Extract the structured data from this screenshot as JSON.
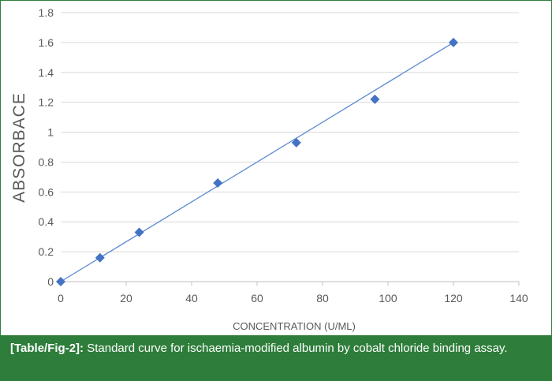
{
  "figure": {
    "label": "[Table/Fig-2]:",
    "caption": "Standard curve for ischaemia-modified albumin by cobalt chloride binding assay."
  },
  "chart_data": {
    "type": "scatter",
    "title": "",
    "xlabel": "CONCENTRATION (U/ML)",
    "ylabel": "ABSORBACE",
    "xlim": [
      0,
      140
    ],
    "ylim": [
      0,
      1.8
    ],
    "x_ticks": [
      "0",
      "20",
      "40",
      "60",
      "80",
      "100",
      "120",
      "140"
    ],
    "y_ticks": [
      "0",
      "0.2",
      "0.4",
      "0.6",
      "0.8",
      "1",
      "1.2",
      "1.4",
      "1.6",
      "1.8"
    ],
    "grid": "horizontal",
    "legend": "none",
    "series": [
      {
        "marker": "diamond",
        "color": "#4472c4",
        "x": [
          0,
          12,
          24,
          48,
          72,
          96,
          120
        ],
        "y": [
          0,
          0.16,
          0.33,
          0.66,
          0.93,
          1.22,
          1.6
        ]
      }
    ],
    "trendline": {
      "type": "linear",
      "color": "#5b8bd0",
      "x": [
        0,
        120
      ],
      "y": [
        0.0,
        1.6
      ]
    }
  }
}
